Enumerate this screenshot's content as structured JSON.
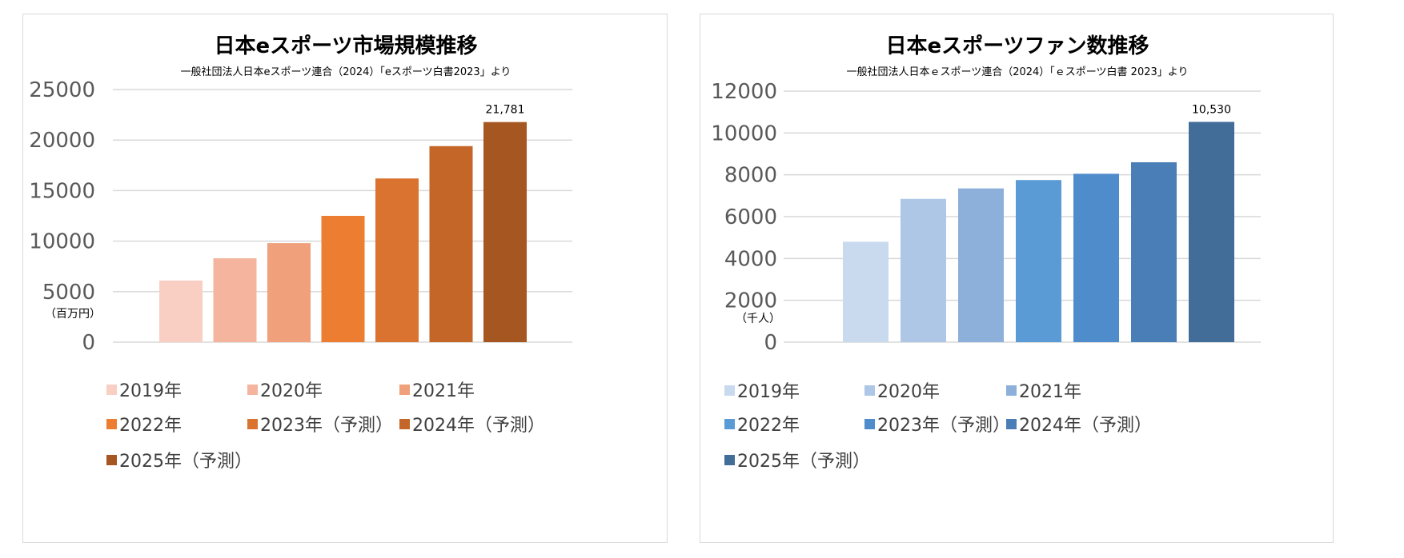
{
  "chart_data": [
    {
      "type": "bar",
      "title": "日本eスポーツ市場規模推移",
      "subtitle": "一般社団法人日本eスポーツ連合（2024）「eスポーツ白書2023」より",
      "unit_label": "（百万円）",
      "ylim": [
        0,
        25000
      ],
      "yticks": [
        "0",
        "5000",
        "10000",
        "15000",
        "20000",
        "25000"
      ],
      "grid": true,
      "legend_position": "bottom",
      "categories": [
        "2019年",
        "2020年",
        "2021年",
        "2022年",
        "2023年（予測）",
        "2024年（予測）",
        "2025年（予測）"
      ],
      "values": [
        6100,
        8300,
        9800,
        12500,
        16200,
        19400,
        21781
      ],
      "colors": [
        "#f8cfc2",
        "#f4b49e",
        "#f0a07a",
        "#ed7d31",
        "#da7330",
        "#c46627",
        "#a65620"
      ],
      "data_labels": [
        "",
        "",
        "",
        "",
        "",
        "",
        "21,781"
      ]
    },
    {
      "type": "bar",
      "title": "日本eスポーツファン数推移",
      "subtitle": "一般社団法人日本ｅスポーツ連合（2024）「ｅスポーツ白書 2023」より",
      "unit_label": "（千人）",
      "ylim": [
        0,
        12000
      ],
      "yticks": [
        "0",
        "2000",
        "4000",
        "6000",
        "8000",
        "10000",
        "12000"
      ],
      "grid": true,
      "legend_position": "bottom",
      "categories": [
        "2019年",
        "2020年",
        "2021年",
        "2022年",
        "2023年（予測）",
        "2024年（予測）",
        "2025年（予測）"
      ],
      "values": [
        4800,
        6850,
        7350,
        7750,
        8050,
        8600,
        10530
      ],
      "colors": [
        "#c9d9ee",
        "#aec7e6",
        "#8cb0da",
        "#5b9bd5",
        "#4e8ccb",
        "#4a7eb7",
        "#416d98"
      ],
      "data_labels": [
        "",
        "",
        "",
        "",
        "",
        "",
        "10,530"
      ]
    }
  ]
}
